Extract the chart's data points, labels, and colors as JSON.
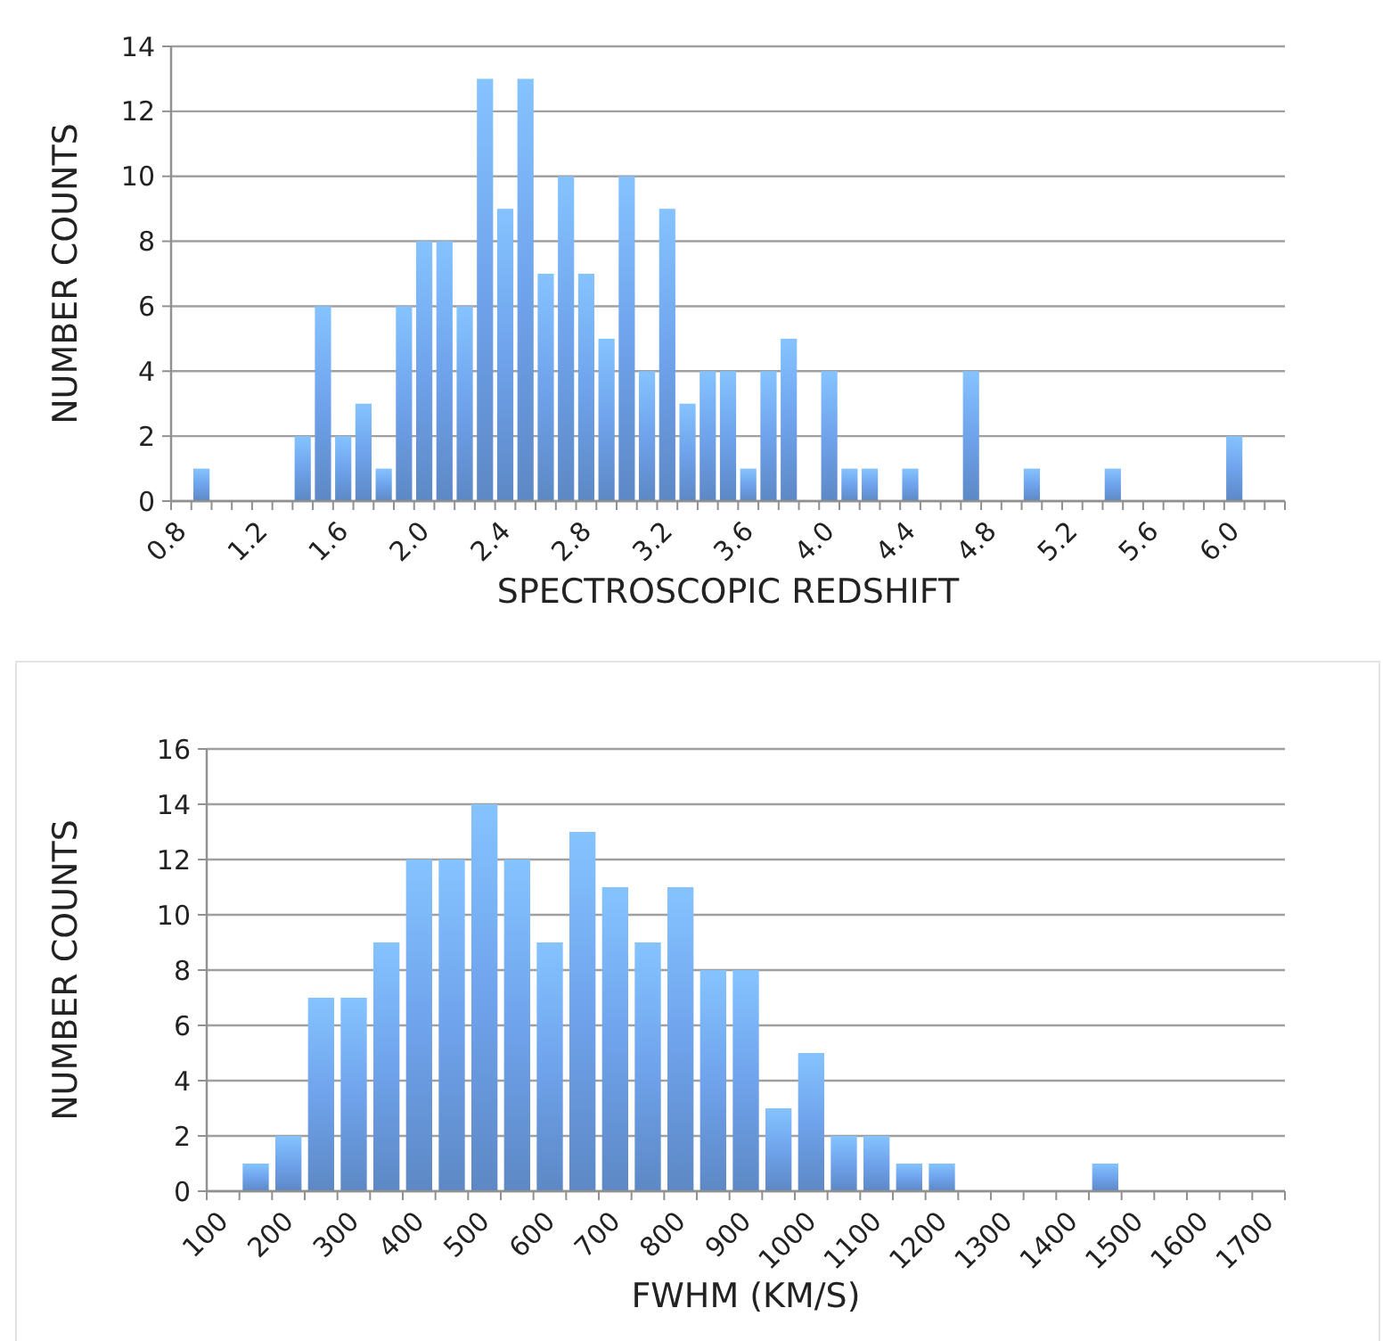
{
  "chart_data": [
    {
      "type": "bar",
      "xlabel": "SPECTROSCOPIC REDSHIFT",
      "ylabel": "NUMBER COUNTS",
      "categories": [
        "0.8",
        null,
        null,
        null,
        "1.2",
        null,
        null,
        null,
        "1.6",
        null,
        null,
        null,
        "2.0",
        null,
        null,
        null,
        "2.4",
        null,
        null,
        null,
        "2.8",
        null,
        null,
        null,
        "3.2",
        null,
        null,
        null,
        "3.6",
        null,
        null,
        null,
        "4.0",
        null,
        null,
        null,
        "4.4",
        null,
        null,
        null,
        "4.8",
        null,
        null,
        null,
        "5.2",
        null,
        null,
        null,
        "5.6",
        null,
        null,
        null,
        "6.0",
        null,
        null
      ],
      "values": [
        0,
        1,
        0,
        0,
        0,
        0,
        2,
        6,
        2,
        3,
        1,
        6,
        8,
        8,
        6,
        13,
        9,
        13,
        7,
        10,
        7,
        5,
        10,
        4,
        9,
        3,
        4,
        4,
        1,
        4,
        5,
        0,
        4,
        1,
        1,
        0,
        1,
        0,
        0,
        4,
        0,
        0,
        1,
        0,
        0,
        0,
        1,
        0,
        0,
        0,
        0,
        0,
        2,
        0,
        0
      ],
      "color": "#6fa3ec",
      "ylim": [
        0,
        14
      ],
      "yticks": [
        0,
        2,
        4,
        6,
        8,
        10,
        12,
        14
      ],
      "grid": "y"
    },
    {
      "type": "bar",
      "xlabel": "FWHM (KM/S)",
      "ylabel": "NUMBER COUNTS",
      "categories": [
        "100",
        null,
        "200",
        null,
        "300",
        null,
        "400",
        null,
        "500",
        null,
        "600",
        null,
        "700",
        null,
        "800",
        null,
        "900",
        null,
        "1000",
        null,
        "1100",
        null,
        "1200",
        null,
        "1300",
        null,
        "1400",
        null,
        "1500",
        null,
        "1600",
        null,
        "1700"
      ],
      "values": [
        0,
        1,
        2,
        7,
        7,
        9,
        12,
        12,
        14,
        12,
        9,
        13,
        11,
        9,
        11,
        8,
        8,
        3,
        5,
        2,
        2,
        1,
        1,
        0,
        0,
        0,
        0,
        1,
        0,
        0,
        0,
        0,
        0
      ],
      "color": "#6fa3ec",
      "ylim": [
        0,
        16
      ],
      "yticks": [
        0,
        2,
        4,
        6,
        8,
        10,
        12,
        14,
        16
      ],
      "grid": "y"
    }
  ]
}
